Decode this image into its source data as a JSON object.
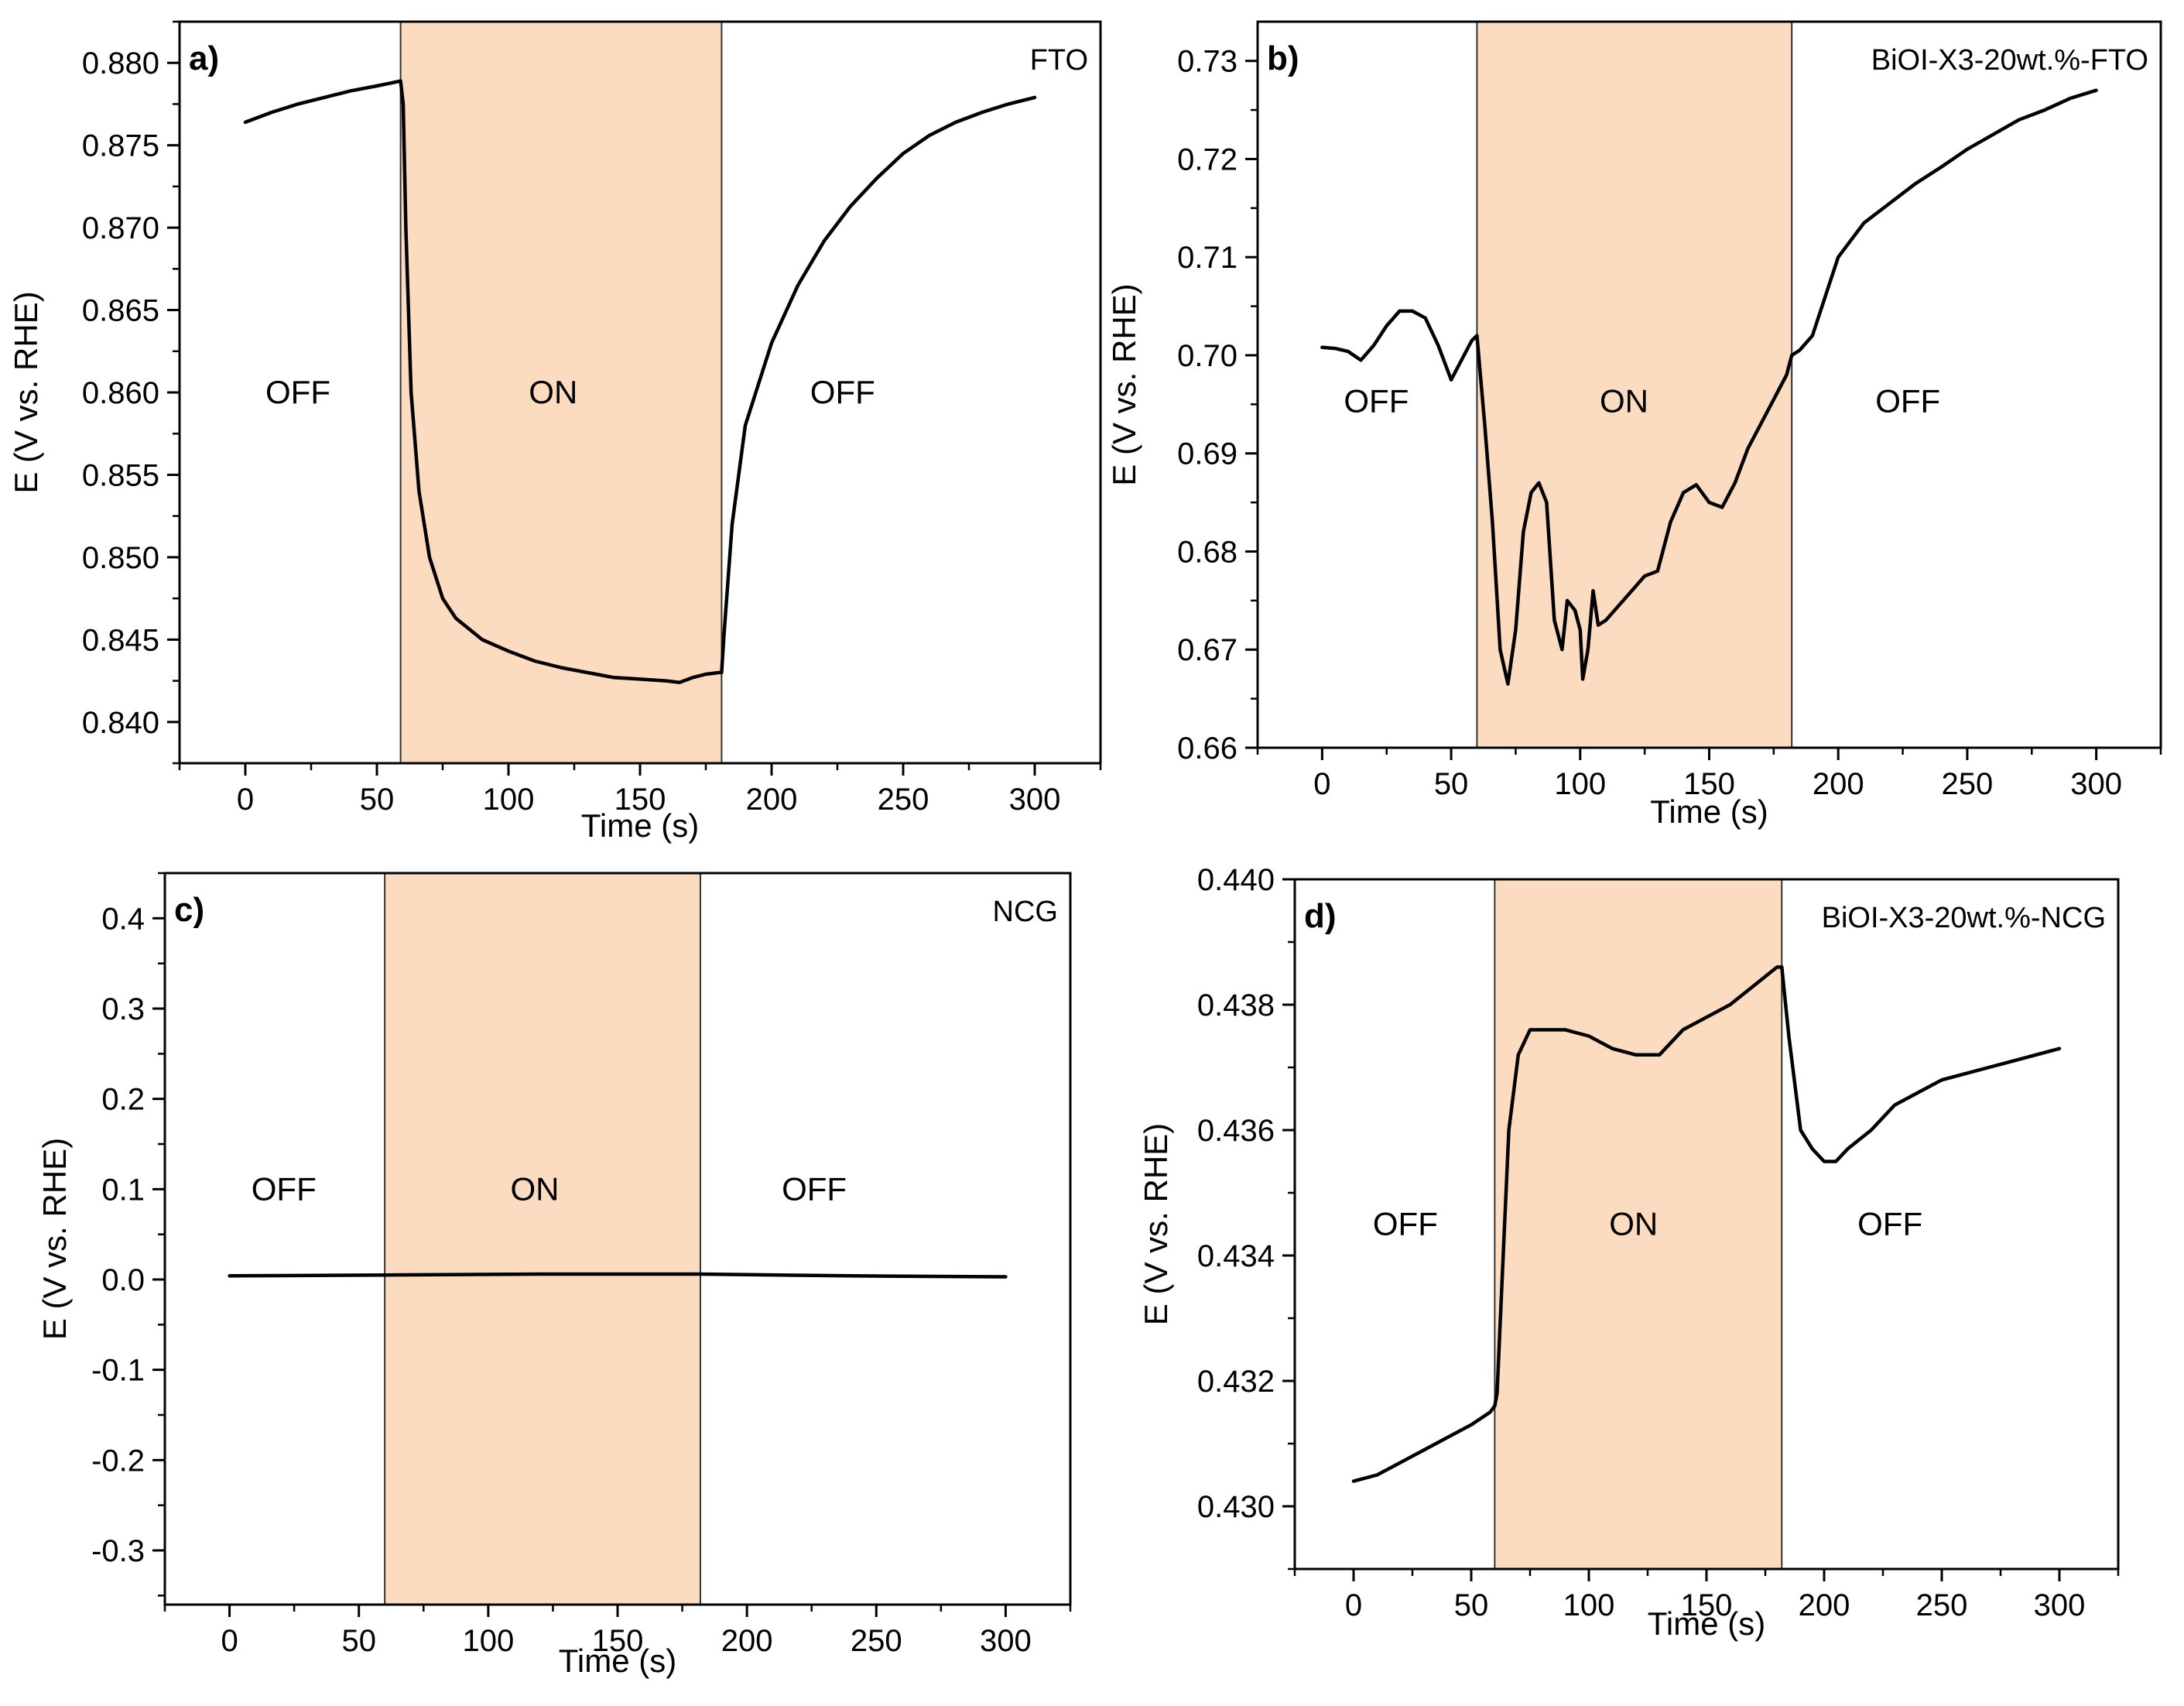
{
  "chart_data": [
    {
      "type": "line",
      "panel_label": "a)",
      "corner_label": "FTO",
      "xlabel": "Time (s)",
      "ylabel": "E (V vs. RHE)",
      "xlim": [
        -25,
        325
      ],
      "ylim": [
        0.8375,
        0.8825
      ],
      "xticks": [
        0,
        50,
        100,
        150,
        200,
        250,
        300
      ],
      "yticks": [
        0.84,
        0.845,
        0.85,
        0.855,
        0.86,
        0.865,
        0.87,
        0.875,
        0.88
      ],
      "ytick_labels": [
        "0.840",
        "0.845",
        "0.850",
        "0.855",
        "0.860",
        "0.865",
        "0.870",
        "0.875",
        "0.880"
      ],
      "on_region": [
        59,
        181
      ],
      "state_labels": [
        {
          "text": "OFF",
          "x": 20,
          "y": 0.86
        },
        {
          "text": "ON",
          "x": 117,
          "y": 0.86
        },
        {
          "text": "OFF",
          "x": 227,
          "y": 0.86
        }
      ],
      "series": [
        {
          "name": "FTO",
          "x": [
            0,
            10,
            20,
            30,
            40,
            50,
            56,
            59,
            60,
            61,
            63,
            66,
            70,
            75,
            80,
            90,
            100,
            110,
            120,
            130,
            140,
            150,
            160,
            165,
            170,
            175,
            180,
            181,
            182,
            185,
            190,
            200,
            210,
            220,
            230,
            240,
            250,
            260,
            270,
            280,
            290,
            300
          ],
          "y": [
            0.8764,
            0.877,
            0.8775,
            0.8779,
            0.8783,
            0.8786,
            0.8788,
            0.8789,
            0.8775,
            0.87,
            0.86,
            0.854,
            0.85,
            0.8475,
            0.8463,
            0.845,
            0.8443,
            0.8437,
            0.8433,
            0.843,
            0.8427,
            0.8426,
            0.8425,
            0.8424,
            0.8427,
            0.8429,
            0.843,
            0.843,
            0.8455,
            0.852,
            0.858,
            0.863,
            0.8665,
            0.8692,
            0.8713,
            0.873,
            0.8745,
            0.8756,
            0.8764,
            0.877,
            0.8775,
            0.8779
          ]
        }
      ]
    },
    {
      "type": "line",
      "panel_label": "b)",
      "corner_label": "BiOI-X3-20wt.%-FTO",
      "xlabel": "Time (s)",
      "ylabel": "E (V vs. RHE)",
      "xlim": [
        -25,
        325
      ],
      "ylim": [
        0.66,
        0.734
      ],
      "xticks": [
        0,
        50,
        100,
        150,
        200,
        250,
        300
      ],
      "yticks": [
        0.66,
        0.67,
        0.68,
        0.69,
        0.7,
        0.71,
        0.72,
        0.73
      ],
      "ytick_labels": [
        "0.66",
        "0.67",
        "0.68",
        "0.69",
        "0.70",
        "0.71",
        "0.72",
        "0.73"
      ],
      "on_region": [
        60,
        182
      ],
      "state_labels": [
        {
          "text": "OFF",
          "x": 21,
          "y": 0.6953
        },
        {
          "text": "ON",
          "x": 117,
          "y": 0.6953
        },
        {
          "text": "OFF",
          "x": 227,
          "y": 0.6953
        }
      ],
      "series": [
        {
          "name": "BiOI-X3-20wt.%-FTO",
          "x": [
            0,
            5,
            10,
            15,
            20,
            25,
            30,
            35,
            40,
            45,
            50,
            55,
            58,
            60,
            61,
            63,
            66,
            69,
            72,
            75,
            78,
            81,
            84,
            87,
            90,
            93,
            95,
            98,
            100,
            101,
            103,
            105,
            107,
            110,
            115,
            120,
            125,
            130,
            135,
            140,
            145,
            150,
            155,
            160,
            165,
            170,
            175,
            180,
            182,
            185,
            190,
            195,
            200,
            210,
            220,
            230,
            240,
            250,
            260,
            270,
            280,
            290,
            300
          ],
          "y": [
            0.7008,
            0.7007,
            0.7004,
            0.6995,
            0.701,
            0.703,
            0.7045,
            0.7045,
            0.7038,
            0.701,
            0.6975,
            0.7,
            0.7015,
            0.702,
            0.699,
            0.693,
            0.683,
            0.67,
            0.6665,
            0.672,
            0.682,
            0.686,
            0.687,
            0.685,
            0.673,
            0.67,
            0.675,
            0.674,
            0.672,
            0.667,
            0.67,
            0.676,
            0.6725,
            0.673,
            0.6745,
            0.676,
            0.6775,
            0.678,
            0.683,
            0.686,
            0.6868,
            0.685,
            0.6845,
            0.687,
            0.6905,
            0.693,
            0.6955,
            0.698,
            0.7,
            0.7005,
            0.702,
            0.706,
            0.71,
            0.7135,
            0.7155,
            0.7175,
            0.7192,
            0.721,
            0.7225,
            0.724,
            0.725,
            0.7262,
            0.727
          ]
        }
      ]
    },
    {
      "type": "line",
      "panel_label": "c)",
      "corner_label": "NCG",
      "xlabel": "Time (s)",
      "ylabel": "E (V vs. RHE)",
      "xlim": [
        -25,
        325
      ],
      "ylim": [
        -0.36,
        0.45
      ],
      "xticks": [
        0,
        50,
        100,
        150,
        200,
        250,
        300
      ],
      "yticks": [
        -0.3,
        -0.2,
        -0.1,
        0.0,
        0.1,
        0.2,
        0.3,
        0.4
      ],
      "ytick_labels": [
        "-0.3",
        "-0.2",
        "-0.1",
        "0.0",
        "0.1",
        "0.2",
        "0.3",
        "0.4"
      ],
      "on_region": [
        60,
        182
      ],
      "state_labels": [
        {
          "text": "OFF",
          "x": 21,
          "y": 0.1
        },
        {
          "text": "ON",
          "x": 118,
          "y": 0.1
        },
        {
          "text": "OFF",
          "x": 226,
          "y": 0.1
        }
      ],
      "series": [
        {
          "name": "NCG",
          "x": [
            0,
            60,
            120,
            182,
            240,
            300
          ],
          "y": [
            0.004,
            0.005,
            0.006,
            0.006,
            0.004,
            0.003
          ]
        }
      ]
    },
    {
      "type": "line",
      "panel_label": "d)",
      "corner_label": "BiOI-X3-20wt.%-NCG",
      "xlabel": "Time (s)",
      "ylabel": "E (V vs. RHE)",
      "xlim": [
        -25,
        325
      ],
      "ylim": [
        0.429,
        0.44
      ],
      "xticks": [
        0,
        50,
        100,
        150,
        200,
        250,
        300
      ],
      "yticks": [
        0.43,
        0.432,
        0.434,
        0.436,
        0.438,
        0.44
      ],
      "ytick_labels": [
        "0.430",
        "0.432",
        "0.434",
        "0.436",
        "0.438",
        "0.440"
      ],
      "on_region": [
        60,
        182
      ],
      "state_labels": [
        {
          "text": "OFF",
          "x": 22,
          "y": 0.4345
        },
        {
          "text": "ON",
          "x": 119,
          "y": 0.4345
        },
        {
          "text": "OFF",
          "x": 228,
          "y": 0.4345
        }
      ],
      "series": [
        {
          "name": "BiOI-X3-20wt.%-NCG",
          "x": [
            0,
            10,
            20,
            30,
            40,
            50,
            58,
            60,
            61,
            63,
            66,
            70,
            75,
            80,
            90,
            100,
            110,
            120,
            130,
            140,
            150,
            160,
            170,
            180,
            182,
            185,
            190,
            195,
            200,
            205,
            210,
            220,
            230,
            240,
            250,
            260,
            270,
            280,
            290,
            300
          ],
          "y": [
            0.4304,
            0.4305,
            0.4307,
            0.4309,
            0.4311,
            0.4313,
            0.4315,
            0.4316,
            0.4318,
            0.4335,
            0.436,
            0.4372,
            0.4376,
            0.4376,
            0.4376,
            0.4375,
            0.4373,
            0.4372,
            0.4372,
            0.4376,
            0.4378,
            0.438,
            0.4383,
            0.4386,
            0.4386,
            0.4375,
            0.436,
            0.4357,
            0.4355,
            0.4355,
            0.4357,
            0.436,
            0.4364,
            0.4366,
            0.4368,
            0.4369,
            0.437,
            0.4371,
            0.4372,
            0.4373
          ]
        }
      ]
    }
  ],
  "colors": {
    "on_fill": "#fcdcc0",
    "line": "#000000"
  }
}
